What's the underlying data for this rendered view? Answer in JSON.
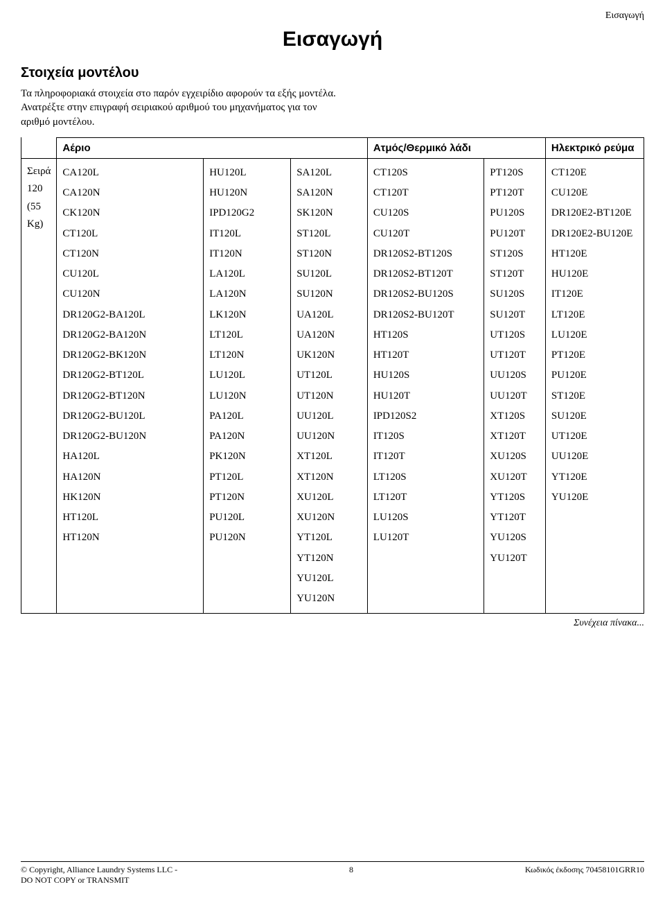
{
  "header_label": "Εισαγωγή",
  "main_title": "Εισαγωγή",
  "section_title": "Στοιχεία μοντέλου",
  "intro_text": "Τα πληροφοριακά στοιχεία στο παρόν εγχειρίδιο αφορούν τα εξής μοντέλα. Ανατρέξτε στην επιγραφή σειριακού αριθμού του μηχανήματος για τον αριθμό μοντέλου.",
  "table": {
    "headers": {
      "aero": "Αέριο",
      "steam": "Ατμός/Θερμικό λάδι",
      "electric": "Ηλεκτρικό ρεύμα"
    },
    "row_label_1": "Σειρά 120",
    "row_label_2": "(55 Kg)",
    "cols": {
      "c1": [
        "CA120L",
        "CA120N",
        "CK120N",
        "CT120L",
        "CT120N",
        "CU120L",
        "CU120N",
        "DR120G2-BA120L",
        "DR120G2-BA120N",
        "DR120G2-BK120N",
        "DR120G2-BT120L",
        "DR120G2-BT120N",
        "DR120G2-BU120L",
        "DR120G2-BU120N",
        "HA120L",
        "HA120N",
        "HK120N",
        "HT120L",
        "HT120N"
      ],
      "c2": [
        "HU120L",
        "HU120N",
        "IPD120G2",
        "IT120L",
        "IT120N",
        "LA120L",
        "LA120N",
        "LK120N",
        "LT120L",
        "LT120N",
        "LU120L",
        "LU120N",
        "PA120L",
        "PA120N",
        "PK120N",
        "PT120L",
        "PT120N",
        "PU120L",
        "PU120N"
      ],
      "c3": [
        "SA120L",
        "SA120N",
        "SK120N",
        "ST120L",
        "ST120N",
        "SU120L",
        "SU120N",
        "UA120L",
        "UA120N",
        "UK120N",
        "UT120L",
        "UT120N",
        "UU120L",
        "UU120N",
        "XT120L",
        "XT120N",
        "XU120L",
        "XU120N",
        "YT120L",
        "YT120N",
        "YU120L",
        "YU120N"
      ],
      "c4": [
        "CT120S",
        "CT120T",
        "CU120S",
        "CU120T",
        "DR120S2-BT120S",
        "DR120S2-BT120T",
        "DR120S2-BU120S",
        "DR120S2-BU120T",
        "HT120S",
        "HT120T",
        "HU120S",
        "HU120T",
        "IPD120S2",
        "IT120S",
        "IT120T",
        "LT120S",
        "LT120T",
        "LU120S",
        "LU120T"
      ],
      "c5": [
        "PT120S",
        "PT120T",
        "PU120S",
        "PU120T",
        "ST120S",
        "ST120T",
        "SU120S",
        "SU120T",
        "UT120S",
        "UT120T",
        "UU120S",
        "UU120T",
        "XT120S",
        "XT120T",
        "XU120S",
        "XU120T",
        "YT120S",
        "YT120T",
        "YU120S",
        "YU120T"
      ],
      "c6": [
        "CT120E",
        "CU120E",
        "DR120E2-BT120E",
        "DR120E2-BU120E",
        "HT120E",
        "HU120E",
        "IT120E",
        "LT120E",
        "LU120E",
        "PT120E",
        "PU120E",
        "ST120E",
        "SU120E",
        "UT120E",
        "UU120E",
        "YT120E",
        "YU120E"
      ]
    }
  },
  "continuation": "Συνέχεια πίνακα...",
  "footer": {
    "copyright_line1": "© Copyright, Alliance Laundry Systems LLC -",
    "copyright_line2": "DO NOT COPY or TRANSMIT",
    "page_number": "8",
    "doc_code": "Κωδικός έκδοσης 70458101GRR10"
  }
}
